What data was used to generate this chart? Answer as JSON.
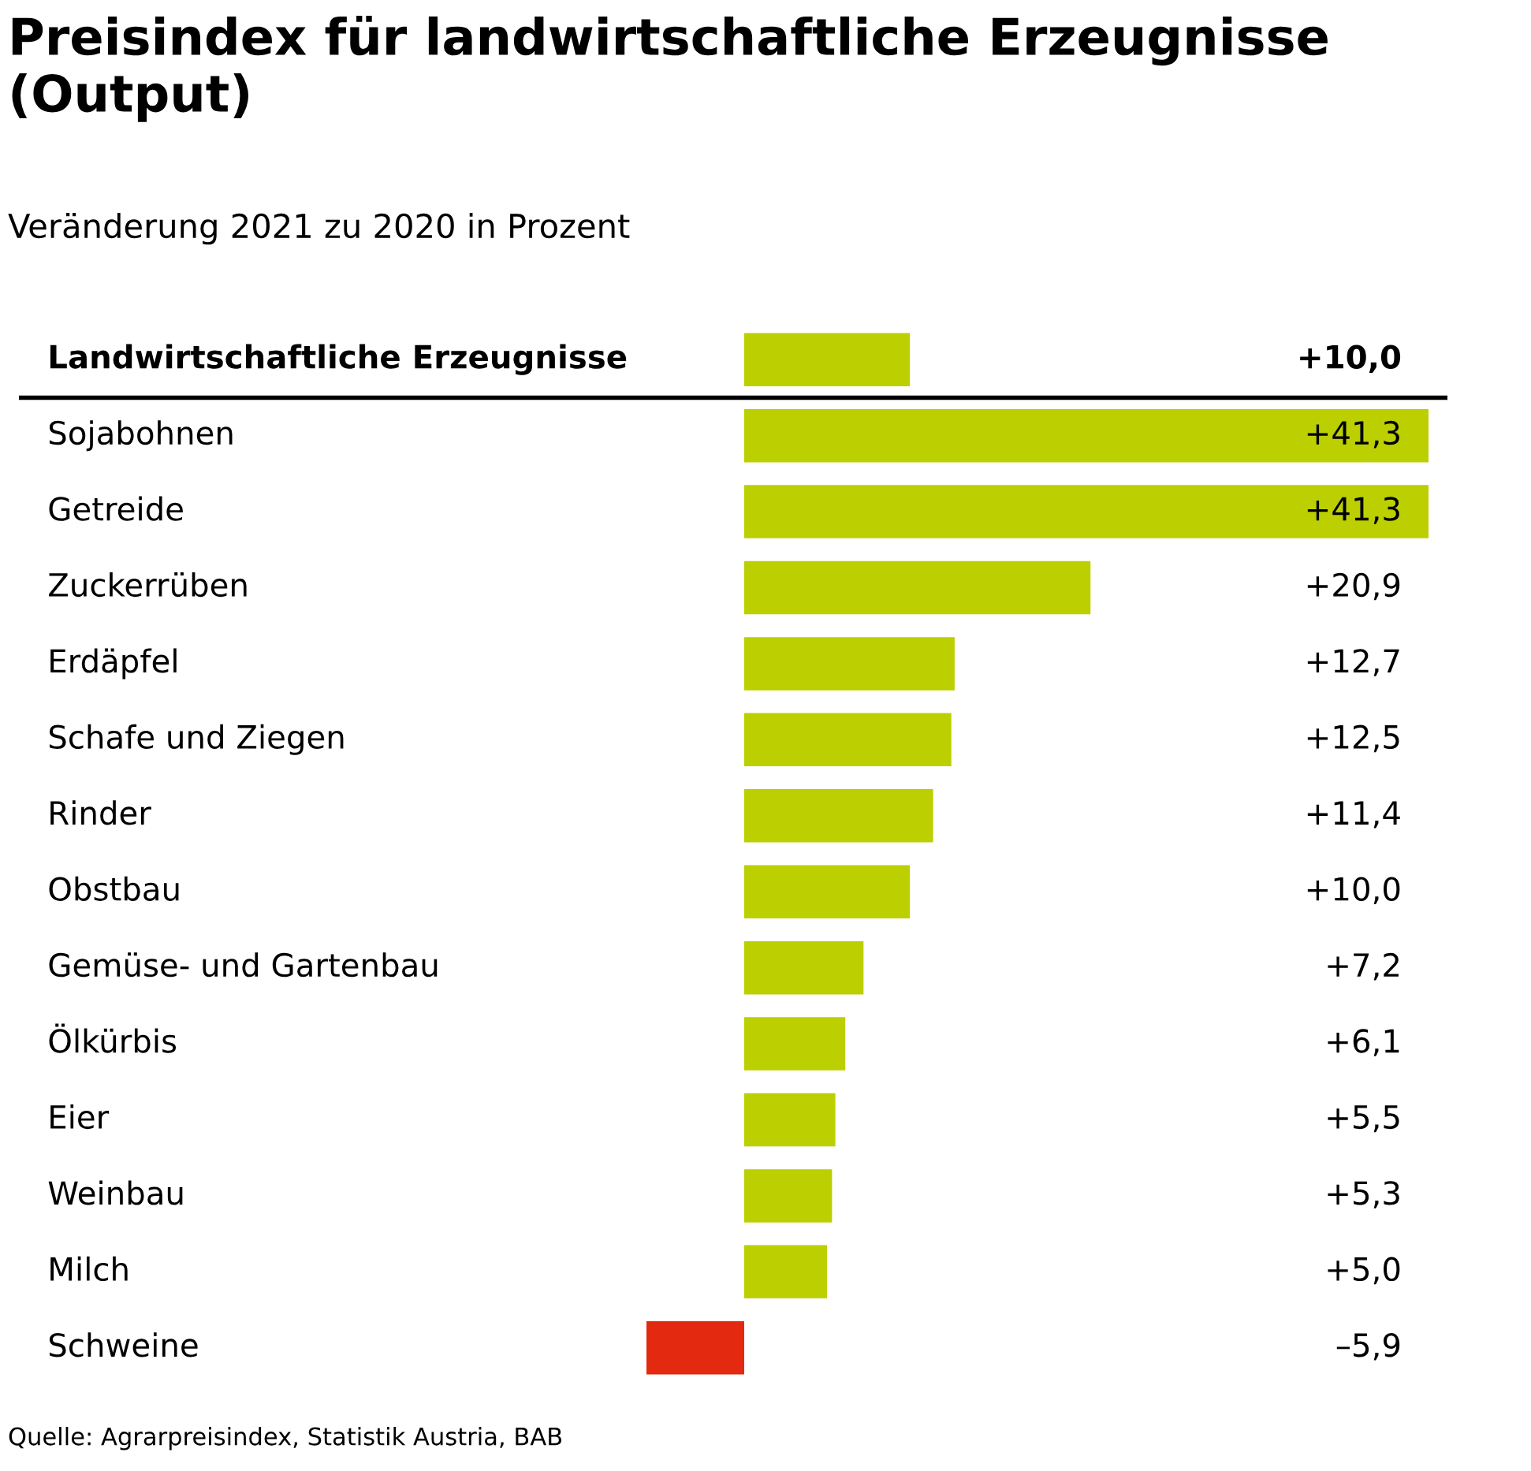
{
  "chart_data": {
    "type": "bar",
    "title": "Preisindex für landwirtschaftliche Erzeugnisse (Output)",
    "subtitle": "Veränderung 2021 zu 2020 in Prozent",
    "orientation": "horizontal",
    "categories": [
      "Landwirtschaftliche Erzeugnisse",
      "Sojabohnen",
      "Getreide",
      "Zuckerrüben",
      "Erdäpfel",
      "Schafe und Ziegen",
      "Rinder",
      "Obstbau",
      "Gemüse- und Gartenbau",
      "Ölkürbis",
      "Eier",
      "Weinbau",
      "Milch",
      "Schweine"
    ],
    "values": [
      10.0,
      41.3,
      41.3,
      20.9,
      12.7,
      12.5,
      11.4,
      10.0,
      7.2,
      6.1,
      5.5,
      5.3,
      5.0,
      -5.9
    ],
    "colors": [
      "#bccf00",
      "#bccf00",
      "#bccf00",
      "#bccf00",
      "#bccf00",
      "#bccf00",
      "#bccf00",
      "#bccf00",
      "#bccf00",
      "#bccf00",
      "#bccf00",
      "#bccf00",
      "#bccf00",
      "#e3290f"
    ],
    "value_labels": [
      "+10,0",
      "+41,3",
      "+41,3",
      "+20,9",
      "+12,7",
      "+12,5",
      "+11,4",
      "+10,0",
      "+7,2",
      "+6,1",
      "+5,5",
      "+5,3",
      "+5,0",
      "–5,9"
    ],
    "annotations": [
      "Quelle: Agrarpreisindex, Statistik Austria, BAB"
    ]
  }
}
